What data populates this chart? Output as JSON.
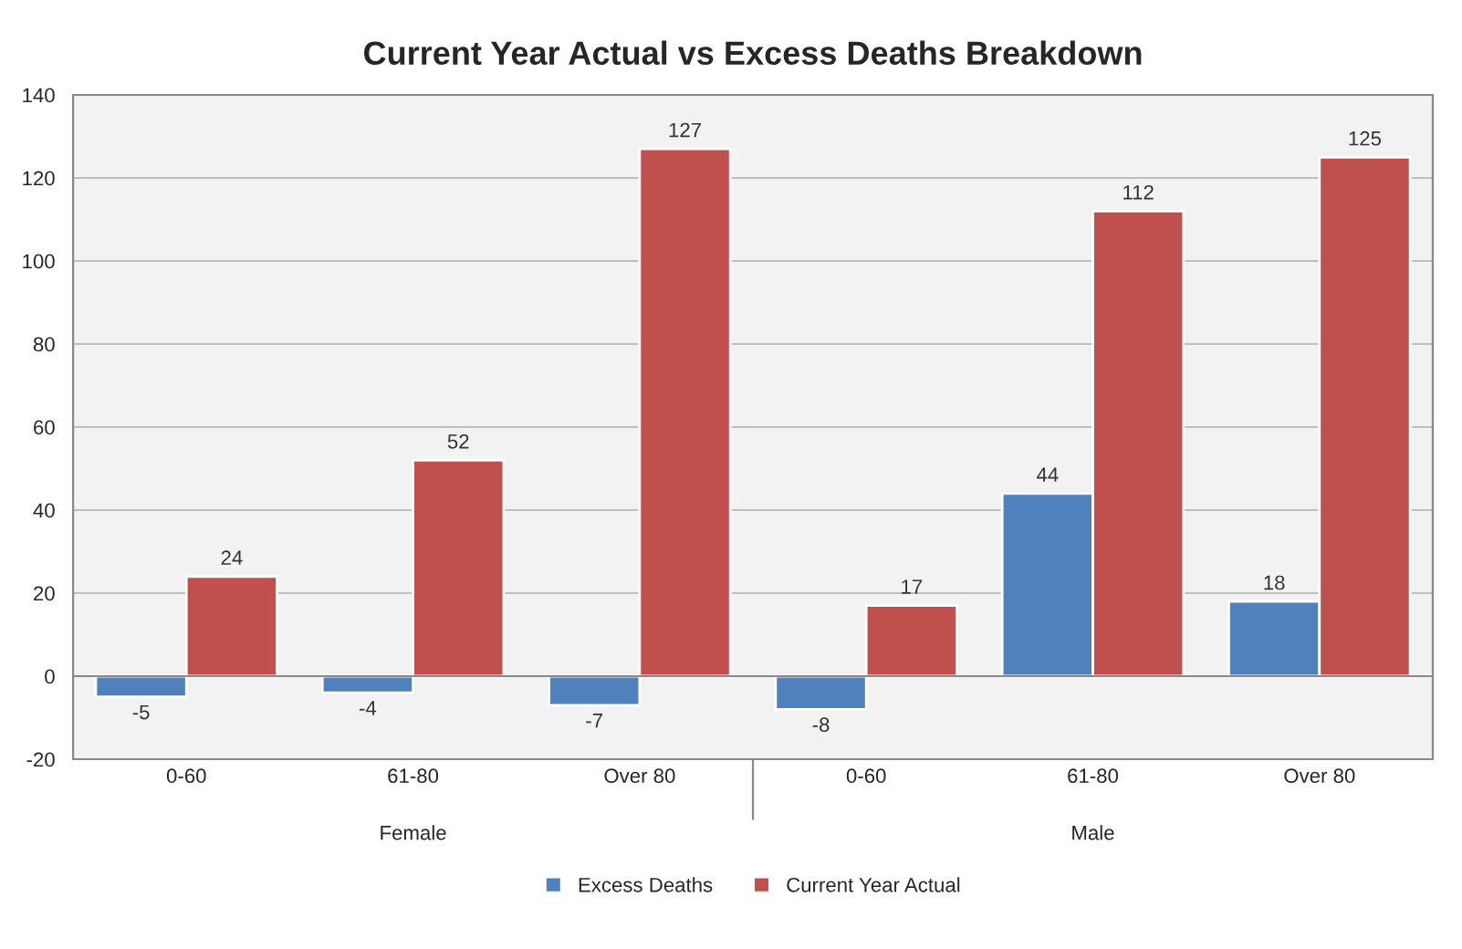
{
  "chart_data": {
    "type": "bar",
    "title": "Current Year Actual vs Excess Deaths Breakdown",
    "categories": [
      "0-60",
      "61-80",
      "Over 80",
      "0-60",
      "61-80",
      "Over 80"
    ],
    "series": [
      {
        "name": "Excess Deaths",
        "color": "#4f81bd",
        "values": [
          -5,
          -4,
          -7,
          -8,
          44,
          18
        ]
      },
      {
        "name": "Current Year Actual",
        "color": "#c0504d",
        "values": [
          24,
          52,
          127,
          17,
          112,
          125
        ]
      }
    ],
    "annotations": [
      "Female",
      "Male"
    ],
    "ylim": [
      -20,
      140
    ],
    "yticks": [
      -20,
      0,
      20,
      40,
      60,
      80,
      100,
      120,
      140
    ],
    "grid": "y",
    "legend": "bottom",
    "data_labels": true
  }
}
